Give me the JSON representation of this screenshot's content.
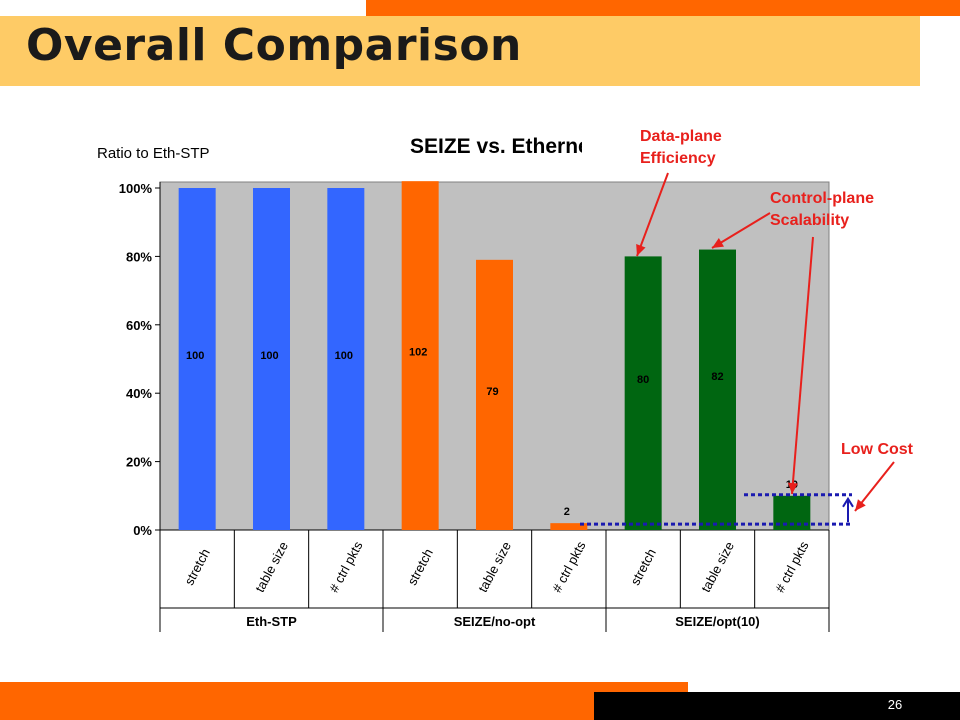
{
  "slide": {
    "title": "Overall Comparison",
    "page_number": "26",
    "callouts": {
      "data_plane_line1": "Data-plane",
      "data_plane_line2": "Efficiency",
      "control_plane_line1": "Control-plane",
      "control_plane_line2": "Scalability",
      "low_cost": "Low Cost"
    }
  },
  "colors": {
    "eth_stp": "#3366ff",
    "seize_no_opt": "#ff6600",
    "seize_opt": "#006611",
    "plot_bg": "#c0c0c0",
    "title_band": "#fecb66",
    "accent": "#ff6600",
    "callout": "#e8201c",
    "dotted_line": "#1a1ab0"
  },
  "chart_data": {
    "type": "bar",
    "title": "SEIZE vs. Etherne",
    "ylabel": "Ratio to Eth-STP",
    "ylim": [
      0,
      100
    ],
    "yticks": [
      "0%",
      "20%",
      "40%",
      "60%",
      "80%",
      "100%"
    ],
    "categories": [
      "stretch",
      "table size",
      "# ctrl pkts",
      "stretch",
      "table size",
      "# ctrl pkts",
      "stretch",
      "table size",
      "# ctrl pkts"
    ],
    "groups": [
      {
        "name": "Eth-STP",
        "categories": [
          "stretch",
          "table size",
          "# ctrl pkts"
        ],
        "values": [
          100,
          100,
          100
        ]
      },
      {
        "name": "SEIZE/no-opt",
        "categories": [
          "stretch",
          "table size",
          "# ctrl pkts"
        ],
        "values": [
          102,
          79,
          2
        ]
      },
      {
        "name": "SEIZE/opt(10)",
        "categories": [
          "stretch",
          "table size",
          "# ctrl pkts"
        ],
        "values": [
          80,
          82,
          10
        ]
      }
    ],
    "values": [
      100,
      100,
      100,
      102,
      79,
      2,
      80,
      82,
      10
    ],
    "data_labels": [
      "100",
      "100",
      "100",
      "102",
      "79",
      "2",
      "80",
      "82",
      "10"
    ],
    "grid": false,
    "legend": "none"
  }
}
